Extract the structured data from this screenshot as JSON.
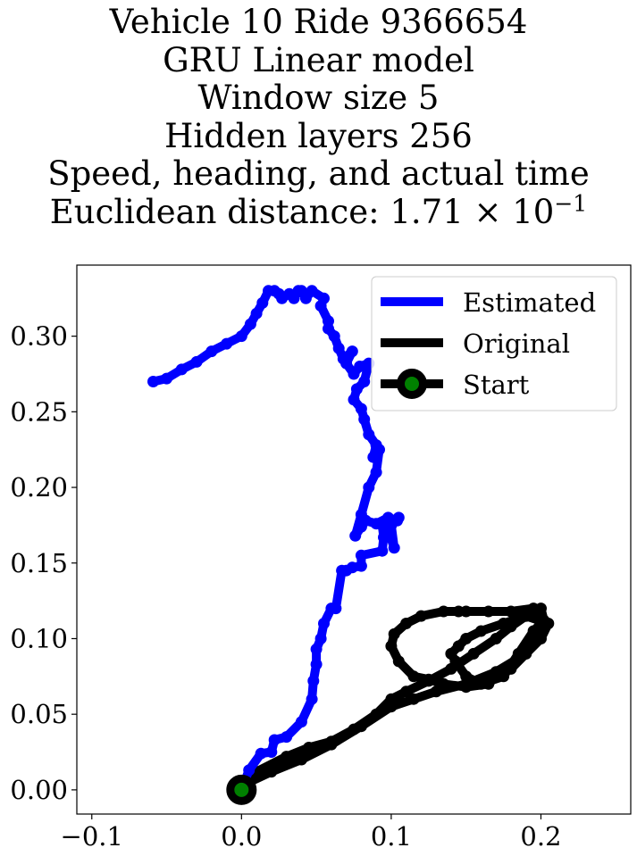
{
  "chart_data": {
    "type": "line",
    "title_lines": [
      "Vehicle 10 Ride 9366654",
      "GRU Linear model",
      "Window size 5",
      "Hidden layers 256",
      "Speed, heading, and actual time"
    ],
    "title_metric_prefix": "Euclidean distance: 1.71 × 10",
    "title_metric_exponent": "−1",
    "xlabel": "",
    "ylabel": "",
    "xlim": [
      -0.11,
      0.26
    ],
    "ylim": [
      -0.016,
      0.347
    ],
    "xticks": [
      -0.1,
      0.0,
      0.1,
      0.2
    ],
    "xtick_labels": [
      "−0.1",
      "0.0",
      "0.1",
      "0.2"
    ],
    "yticks": [
      0.0,
      0.05,
      0.1,
      0.15,
      0.2,
      0.25,
      0.3
    ],
    "ytick_labels": [
      "0.00",
      "0.05",
      "0.10",
      "0.15",
      "0.20",
      "0.25",
      "0.30"
    ],
    "grid": false,
    "legend_position": "top-right",
    "legend": [
      "Estimated",
      "Original",
      "Start"
    ],
    "series": [
      {
        "name": "Estimated",
        "color": "#0000ff",
        "x": [
          0.0,
          0.005,
          0.013,
          0.02,
          0.022,
          0.03,
          0.04,
          0.047,
          0.048,
          0.05,
          0.05,
          0.053,
          0.055,
          0.06,
          0.063,
          0.067,
          0.07,
          0.074,
          0.08,
          0.08,
          0.094,
          0.095,
          0.094,
          0.098,
          0.102,
          0.1,
          0.105,
          0.104,
          0.098,
          0.09,
          0.083,
          0.08,
          0.076,
          0.08,
          0.085,
          0.09,
          0.092,
          0.088,
          0.09,
          0.085,
          0.082,
          0.08,
          0.075,
          0.077,
          0.082,
          0.085,
          0.079,
          0.075,
          0.07,
          0.074,
          0.068,
          0.065,
          0.062,
          0.058,
          0.058,
          0.053,
          0.055,
          0.047,
          0.043,
          0.04,
          0.038,
          0.035,
          0.032,
          0.027,
          0.025,
          0.022,
          0.018,
          0.014,
          0.01,
          0.006,
          0.0,
          -0.01,
          -0.02,
          -0.03,
          -0.04,
          -0.05,
          -0.059
        ],
        "y": [
          0.0,
          0.013,
          0.024,
          0.025,
          0.033,
          0.035,
          0.045,
          0.06,
          0.072,
          0.083,
          0.093,
          0.1,
          0.11,
          0.12,
          0.12,
          0.145,
          0.145,
          0.147,
          0.148,
          0.155,
          0.158,
          0.167,
          0.175,
          0.172,
          0.16,
          0.175,
          0.18,
          0.178,
          0.18,
          0.176,
          0.178,
          0.174,
          0.168,
          0.182,
          0.2,
          0.21,
          0.225,
          0.22,
          0.228,
          0.235,
          0.245,
          0.252,
          0.258,
          0.265,
          0.27,
          0.282,
          0.28,
          0.275,
          0.282,
          0.29,
          0.285,
          0.292,
          0.3,
          0.305,
          0.31,
          0.32,
          0.325,
          0.33,
          0.325,
          0.33,
          0.33,
          0.325,
          0.328,
          0.325,
          0.328,
          0.33,
          0.33,
          0.322,
          0.315,
          0.308,
          0.3,
          0.295,
          0.29,
          0.283,
          0.278,
          0.272,
          0.27
        ]
      },
      {
        "name": "Original",
        "color": "#000000",
        "x": [
          0.0,
          0.01,
          0.03,
          0.045,
          0.06,
          0.075,
          0.09,
          0.1,
          0.11,
          0.125,
          0.14,
          0.155,
          0.17,
          0.18,
          0.19,
          0.2,
          0.202,
          0.195,
          0.185,
          0.175,
          0.16,
          0.15,
          0.143,
          0.14,
          0.145,
          0.15,
          0.16,
          0.175,
          0.19,
          0.205,
          0.2,
          0.19,
          0.18,
          0.17,
          0.165,
          0.15,
          0.135,
          0.125,
          0.115,
          0.105,
          0.1,
          0.102,
          0.11,
          0.12,
          0.135,
          0.145,
          0.15,
          0.165,
          0.18,
          0.195,
          0.2,
          0.195,
          0.19,
          0.17,
          0.15,
          0.13,
          0.115,
          0.1,
          0.08,
          0.06,
          0.04,
          0.02,
          0.005,
          0.0
        ],
        "y": [
          0.0,
          0.012,
          0.022,
          0.028,
          0.032,
          0.04,
          0.05,
          0.06,
          0.065,
          0.072,
          0.08,
          0.09,
          0.1,
          0.108,
          0.115,
          0.12,
          0.112,
          0.105,
          0.09,
          0.075,
          0.07,
          0.075,
          0.085,
          0.09,
          0.095,
          0.1,
          0.105,
          0.11,
          0.115,
          0.11,
          0.1,
          0.09,
          0.08,
          0.075,
          0.07,
          0.068,
          0.07,
          0.073,
          0.075,
          0.085,
          0.095,
          0.103,
          0.11,
          0.115,
          0.118,
          0.118,
          0.118,
          0.118,
          0.118,
          0.12,
          0.11,
          0.1,
          0.09,
          0.078,
          0.07,
          0.065,
          0.06,
          0.055,
          0.042,
          0.03,
          0.02,
          0.012,
          0.005,
          0.0
        ]
      }
    ],
    "start_point": {
      "name": "Start",
      "x": 0.0,
      "y": 0.0,
      "face_color": "#008000",
      "edge_color": "#000000"
    }
  }
}
